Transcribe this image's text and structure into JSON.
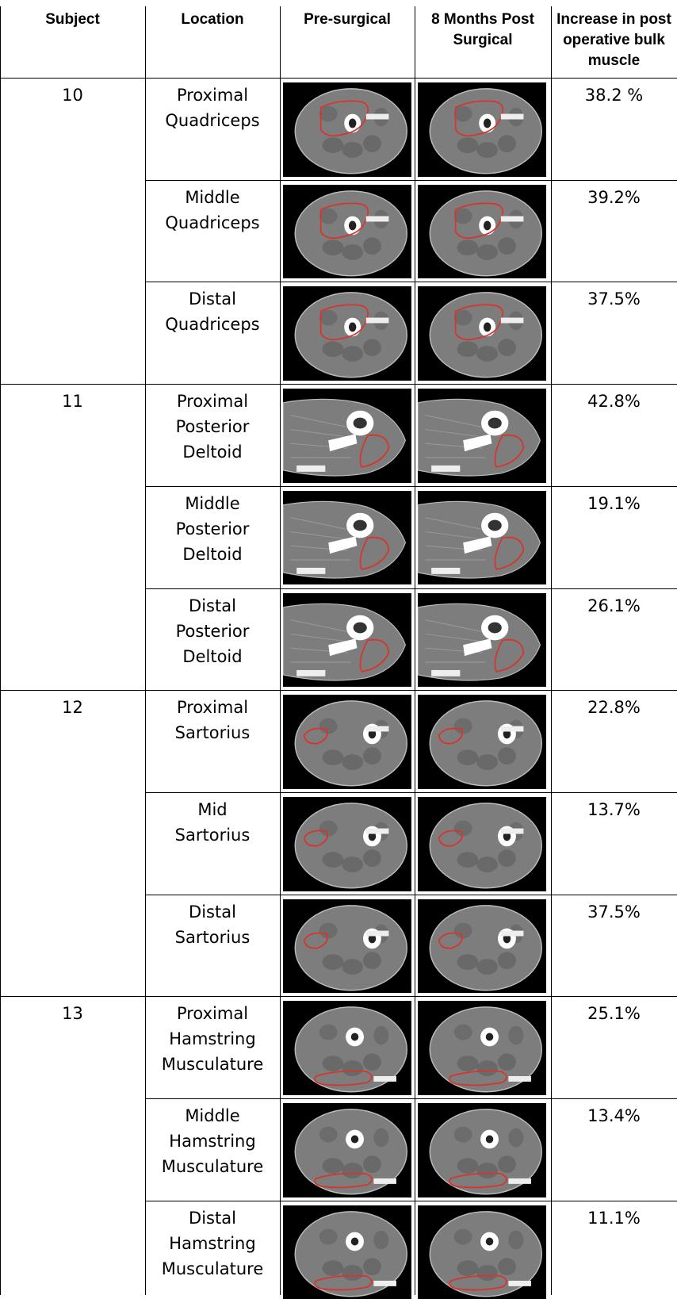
{
  "headers": {
    "subject": "Subject",
    "location": "Location",
    "pre": "Pre-surgical",
    "post": "8 Months Post\nSurgical",
    "increase": "Increase in post\noperative bulk\nmuscle"
  },
  "subjects": [
    {
      "id": "10",
      "rows": [
        {
          "location": "Proximal\nQuadriceps",
          "increase": "38.2 %",
          "scan": "thigh-quadriceps"
        },
        {
          "location": "Middle\nQuadriceps",
          "increase": "39.2%",
          "scan": "thigh-quadriceps"
        },
        {
          "location": "Distal\nQuadriceps",
          "increase": "37.5%",
          "scan": "thigh-quadriceps"
        }
      ]
    },
    {
      "id": "11",
      "rows": [
        {
          "location": "Proximal\nPosterior\nDeltoid",
          "increase": "42.8%",
          "scan": "arm-deltoid"
        },
        {
          "location": "Middle\nPosterior\nDeltoid",
          "increase": "19.1%",
          "scan": "arm-deltoid"
        },
        {
          "location": "Distal\nPosterior\nDeltoid",
          "increase": "26.1%",
          "scan": "arm-deltoid"
        }
      ]
    },
    {
      "id": "12",
      "rows": [
        {
          "location": "Proximal\nSartorius",
          "increase": "22.8%",
          "scan": "thigh-sartorius"
        },
        {
          "location": "Mid\nSartorius",
          "increase": "13.7%",
          "scan": "thigh-sartorius"
        },
        {
          "location": "Distal\nSartorius",
          "increase": "37.5%",
          "scan": "thigh-sartorius"
        }
      ]
    },
    {
      "id": "13",
      "rows": [
        {
          "location": "Proximal\nHamstring\nMusculature",
          "increase": "25.1%",
          "scan": "thigh-hamstring"
        },
        {
          "location": "Middle\nHamstring\nMusculature",
          "increase": "13.4%",
          "scan": "thigh-hamstring"
        },
        {
          "location": "Distal\nHamstring\nMusculature",
          "increase": "11.1%",
          "scan": "thigh-hamstring"
        }
      ]
    }
  ],
  "colors": {
    "roi_outline": "#d9342b",
    "scan_background": "#000000",
    "soft_tissue": "#7d7d7d",
    "muscle": "#5c5c5c",
    "bone": "#ffffff"
  }
}
